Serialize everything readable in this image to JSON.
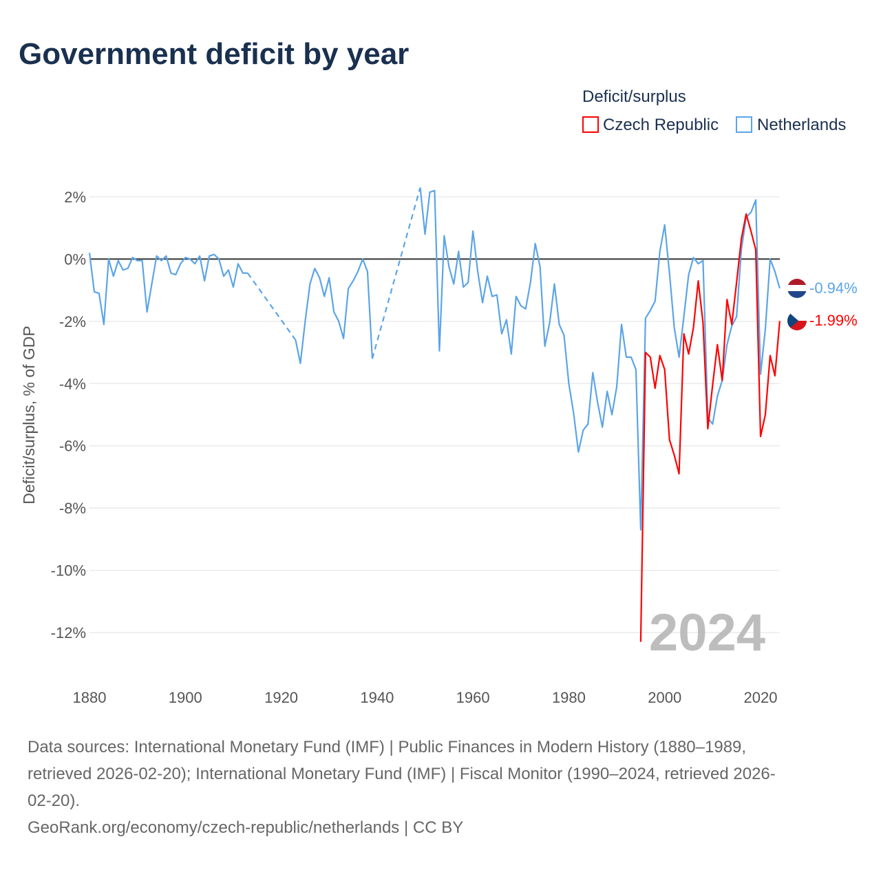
{
  "title": "Government deficit by year",
  "legend": {
    "title": "Deficit/surplus",
    "items": [
      {
        "label": "Czech Republic",
        "color": "#ff0000"
      },
      {
        "label": "Netherlands",
        "color": "#5ba4e8"
      }
    ]
  },
  "current_year": "2024",
  "end_labels": {
    "netherlands": "-0.94%",
    "czech": "-1.99%"
  },
  "footer": {
    "lines": [
      "Data sources: International Monetary Fund (IMF) | Public Finances in Modern History (1880–1989,",
      "retrieved 2026-02-20); International Monetary Fund (IMF) | Fiscal Monitor (1990–2024, retrieved 2026-",
      "02-20)."
    ],
    "credit": "GeoRank.org/economy/czech-republic/netherlands | CC BY"
  },
  "chart_data": {
    "type": "line",
    "title": "Government deficit by year",
    "xlabel": "",
    "ylabel": "Deficit/surplus, % of GDP",
    "xlim": [
      1880,
      2024
    ],
    "ylim": [
      -12,
      2
    ],
    "x_ticks": [
      1880,
      1900,
      1920,
      1940,
      1960,
      1980,
      2000,
      2020
    ],
    "x_tick_labels": [
      "1880",
      "1900",
      "1920",
      "1940",
      "1960",
      "1980",
      "2000",
      "2020"
    ],
    "y_ticks": [
      2,
      0,
      -2,
      -4,
      -6,
      -8,
      -10,
      -12
    ],
    "y_tick_labels": [
      "2%",
      "0%",
      "-2%",
      "-4%",
      "-6%",
      "-8%",
      "-10%",
      "-12%"
    ],
    "grid": true,
    "legend_position": "top-right",
    "series": [
      {
        "name": "Netherlands",
        "color": "#5ba4e8",
        "start_year": 1880,
        "values": [
          0.2,
          -1.05,
          -1.1,
          -2.1,
          0,
          -0.55,
          -0.05,
          -0.35,
          -0.3,
          0.05,
          -0.05,
          -0.05,
          -1.7,
          -0.8,
          0.1,
          -0.05,
          0.1,
          -0.45,
          -0.5,
          -0.15,
          0.05,
          0,
          -0.15,
          0.1,
          -0.7,
          0.1,
          0.15,
          0,
          -0.55,
          -0.35,
          -0.9,
          -0.15,
          -0.45,
          -0.45,
          null,
          null,
          null,
          null,
          null,
          null,
          null,
          null,
          null,
          -2.6,
          -3.35,
          -2.0,
          -0.8,
          -0.3,
          -0.6,
          -1.2,
          -0.6,
          -1.7,
          -2.0,
          -2.55,
          -0.95,
          -0.7,
          -0.4,
          0,
          -0.4,
          -3.2,
          null,
          null,
          null,
          null,
          null,
          null,
          null,
          null,
          null,
          2.3,
          0.8,
          2.15,
          2.2,
          -2.95,
          0.75,
          -0.25,
          -0.8,
          0.25,
          -0.9,
          -0.75,
          0.9,
          -0.4,
          -1.4,
          -0.55,
          -1.2,
          -1.15,
          -2.4,
          -1.95,
          -3.05,
          -1.2,
          -1.5,
          -1.6,
          -0.75,
          0.5,
          -0.25,
          -2.8,
          -2.05,
          -0.8,
          -2.1,
          -2.45,
          -4.0,
          -4.95,
          -6.2,
          -5.5,
          -5.3,
          -3.65,
          -4.6,
          -5.4,
          -4.25,
          -5.0,
          -4.1,
          -2.1,
          -3.15,
          -3.15,
          -3.55,
          -8.7,
          -1.9,
          -1.65,
          -1.35,
          0.25,
          1.1,
          -0.45,
          -2.2,
          -3.15,
          -1.85,
          -0.5,
          0.05,
          -0.15,
          -0.05,
          -5.1,
          -5.3,
          -4.4,
          -3.9,
          -2.75,
          -2.15,
          -1.85,
          0.3,
          1.35,
          1.5,
          1.9,
          -3.7,
          -2.25,
          0,
          -0.4,
          -0.94
        ]
      },
      {
        "name": "Czech Republic",
        "color": "#ff0000",
        "start_year": 1995,
        "values": [
          -12.3,
          -3.0,
          -3.15,
          -4.15,
          -3.1,
          -3.55,
          -5.8,
          -6.3,
          -6.9,
          -2.4,
          -3.05,
          -2.2,
          -0.7,
          -2.05,
          -5.45,
          -4.05,
          -2.75,
          -3.9,
          -1.3,
          -2.1,
          -0.75,
          0.65,
          1.45,
          0.9,
          0.3,
          -5.7,
          -5.0,
          -3.1,
          -3.75,
          -1.99
        ]
      }
    ]
  }
}
